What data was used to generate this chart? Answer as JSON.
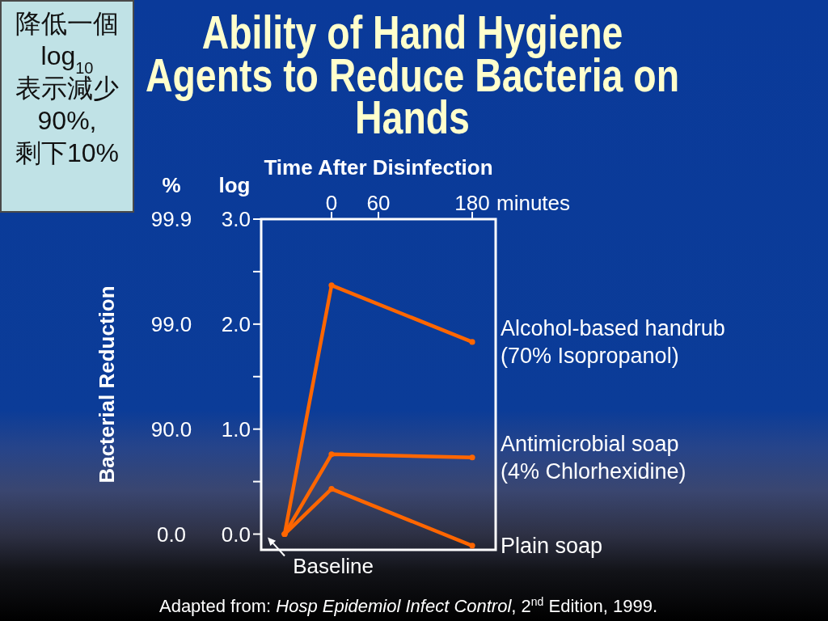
{
  "chart_data": {
    "type": "line",
    "title": "Ability of Hand Hygiene Agents to Reduce Bacteria on Hands",
    "xlabel": "Time After Disinfection",
    "ylabel": "Bacterial Reduction",
    "x": [
      -60,
      0,
      180
    ],
    "series": [
      {
        "name": "Alcohol-based handrub (70% Isopropanol)",
        "color": "#ff6600",
        "values": [
          0,
          2.37,
          1.83
        ]
      },
      {
        "name": "Antimicrobial soap (4% Chlorhexidine)",
        "color": "#ff6600",
        "values": [
          0,
          0.76,
          0.73
        ]
      },
      {
        "name": "Plain soap",
        "color": "#ff6600",
        "values": [
          0,
          0.43,
          -0.11
        ]
      }
    ],
    "xlim": [
      -90,
      210
    ],
    "xticks": [
      0,
      60,
      180
    ],
    "ylim": [
      -0.15,
      3
    ],
    "yticks": [
      {
        "value": 0,
        "label": "0.0"
      },
      {
        "value": 0.5,
        "label": null
      },
      {
        "value": 1,
        "label": "1.0"
      },
      {
        "value": 1.5,
        "label": null
      },
      {
        "value": 2,
        "label": "2.0"
      },
      {
        "value": 2.5,
        "label": null
      },
      {
        "value": 3,
        "label": "3.0"
      }
    ],
    "marker": "circle",
    "line_style": "solid",
    "annotations": [
      "%",
      "log",
      "minutes",
      "0.0",
      "90.0",
      "99.0",
      "99.9",
      {
        "text": "Baseline",
        "x": -60,
        "y": 0
      },
      "降低一個\nlog$_{10}$\n表示減少\n90%,\n剩下10%",
      "Adapted from: *Hosp Epidemiol Infect Control*, 2$^{nd}$ Edition, 1999."
    ]
  }
}
